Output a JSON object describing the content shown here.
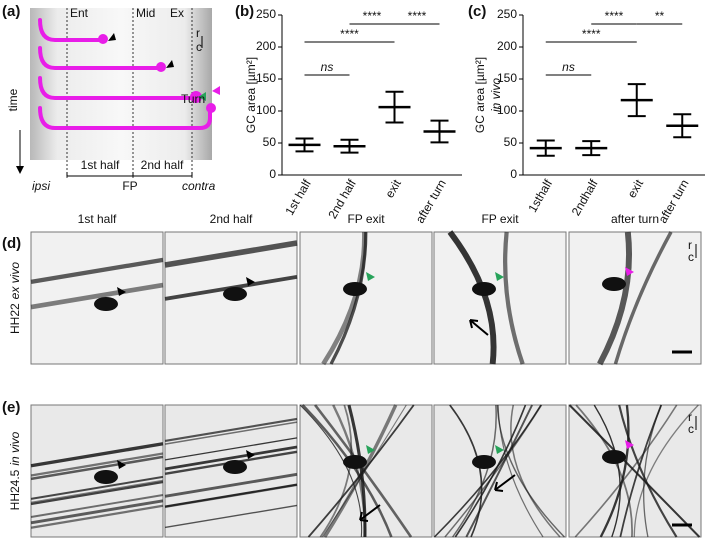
{
  "panel_labels": [
    "(a)",
    "(b)",
    "(c)",
    "(d)",
    "(e)"
  ],
  "schematic": {
    "landmarks": [
      "Ent",
      "Mid",
      "Ex"
    ],
    "time": "time",
    "turn": "Turn",
    "halves": [
      "1st half",
      "2nd half"
    ],
    "fp": "FP",
    "ipsi": "ipsi",
    "contra": "contra",
    "axis": [
      "r",
      "c"
    ]
  },
  "chart_data": [
    {
      "type": "errorbar",
      "ylabel": "GC area [µm²]",
      "categories": [
        "1st half",
        "2nd half",
        "exit",
        "after turn"
      ],
      "series": [
        {
          "color": "#000000",
          "values": [
            47,
            45,
            106,
            68
          ],
          "errors": [
            10,
            10,
            24,
            17
          ]
        }
      ],
      "ylim": [
        0,
        250
      ],
      "yticks": [
        0,
        50,
        100,
        150,
        200,
        250
      ],
      "annotations": [
        {
          "text": "ns",
          "from": 0,
          "to": 1
        },
        {
          "text": "****",
          "from": 0,
          "to": 2
        },
        {
          "text": "****",
          "from": 1,
          "to": 2
        },
        {
          "text": "****",
          "from": 2,
          "to": 3
        }
      ]
    },
    {
      "type": "errorbar",
      "ylabel": "GC area [µm²]",
      "ylabel2": "in vivo",
      "categories": [
        "1sthalf",
        "2ndhalf",
        "exit",
        "after turn"
      ],
      "series": [
        {
          "color": "#000000",
          "values": [
            42,
            42,
            117,
            77
          ],
          "errors": [
            12,
            11,
            25,
            18
          ]
        }
      ],
      "ylim": [
        0,
        250
      ],
      "yticks": [
        0,
        50,
        100,
        150,
        200,
        250
      ],
      "annotations": [
        {
          "text": "ns",
          "from": 0,
          "to": 1
        },
        {
          "text": "****",
          "from": 0,
          "to": 2
        },
        {
          "text": "****",
          "from": 1,
          "to": 2
        },
        {
          "text": "**",
          "from": 2,
          "to": 3
        }
      ]
    }
  ],
  "images": {
    "columns": [
      "1st half",
      "2nd half",
      "FP exit",
      "FP exit",
      "after turn"
    ],
    "rows": [
      {
        "stage": "HH22",
        "condition": "ex vivo"
      },
      {
        "stage": "HH24.5",
        "condition": "in vivo"
      }
    ],
    "axis": [
      "r",
      "c"
    ]
  }
}
